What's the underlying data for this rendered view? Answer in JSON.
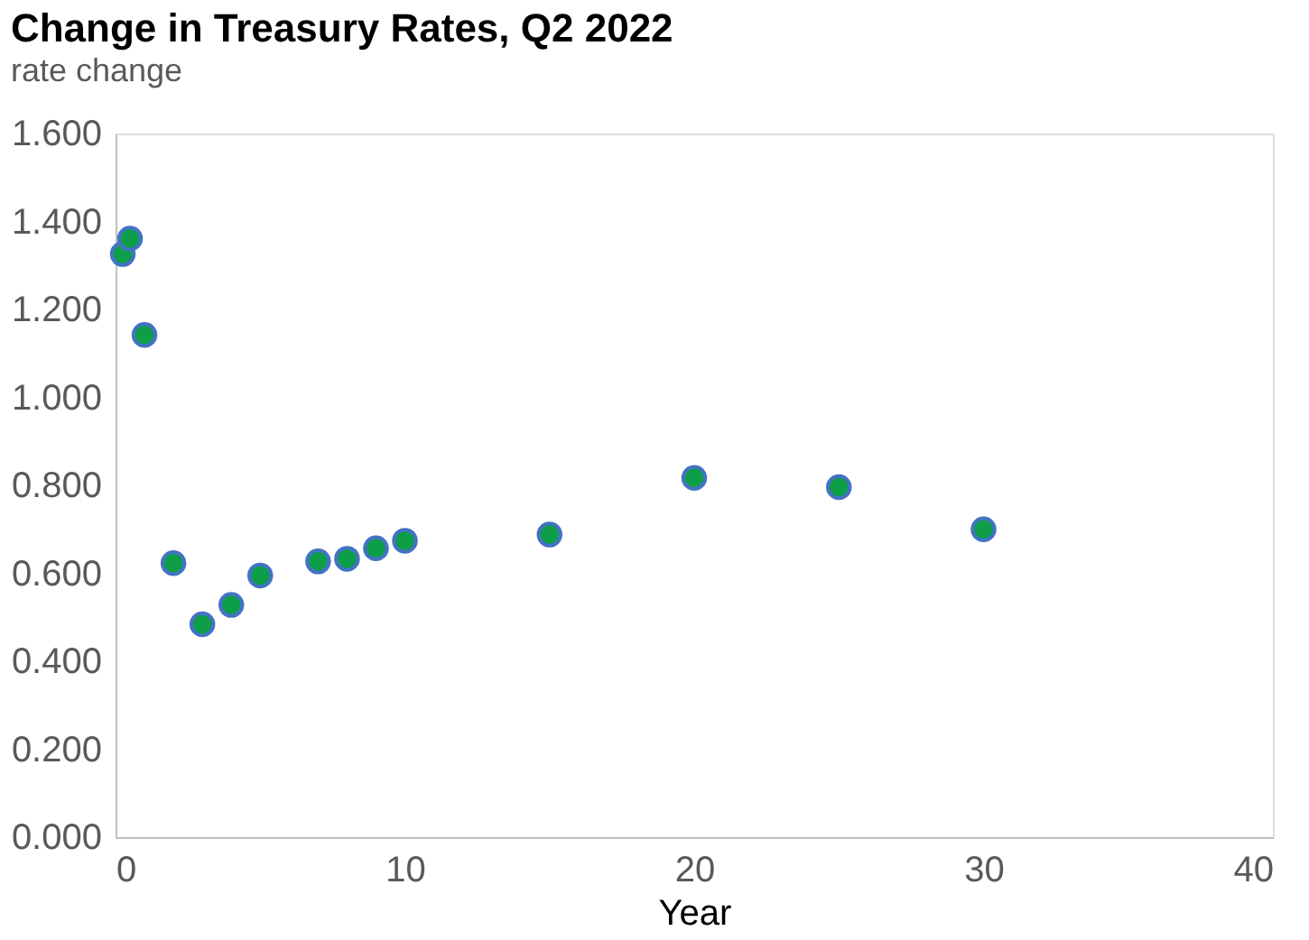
{
  "chart_data": {
    "type": "scatter",
    "title": "Change in Treasury Rates, Q2 2022",
    "ylabel": "rate change",
    "xlabel": "Year",
    "x": [
      0.25,
      0.5,
      1,
      2,
      3,
      4,
      5,
      7,
      8,
      9,
      10,
      15,
      20,
      25,
      30
    ],
    "series": [
      {
        "color": "#0e9e48",
        "values": [
          1.326,
          1.361,
          1.142,
          0.623,
          0.484,
          0.528,
          0.595,
          0.627,
          0.633,
          0.657,
          0.674,
          0.688,
          0.817,
          0.796,
          0.7
        ]
      }
    ],
    "xlim": [
      0,
      40
    ],
    "xticks": [
      0,
      10,
      20,
      30,
      40
    ],
    "ylim": [
      0,
      1.6
    ],
    "yticks": [
      {
        "value": 0,
        "label": "0.000"
      },
      {
        "value": 0.2,
        "label": "0.200"
      },
      {
        "value": 0.4,
        "label": "0.400"
      },
      {
        "value": 0.6,
        "label": "0.600"
      },
      {
        "value": 0.8,
        "label": "0.800"
      },
      {
        "value": 1.0,
        "label": "1.000"
      },
      {
        "value": 1.2,
        "label": "1.200"
      },
      {
        "value": 1.4,
        "label": "1.400"
      },
      {
        "value": 1.6,
        "label": "1.600"
      }
    ],
    "grid": false,
    "marker": "circle"
  }
}
